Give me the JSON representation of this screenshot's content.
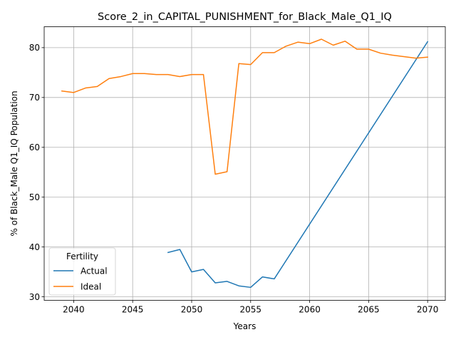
{
  "chart_data": {
    "type": "line",
    "title": "Score_2_in_CAPITAL_PUNISHMENT_for_Black_Male_Q1_IQ",
    "xlabel": "Years",
    "ylabel": "% of Black_Male Q1_IQ Population",
    "xlim": [
      2037.5,
      2071.5
    ],
    "ylim": [
      29.3,
      84.2
    ],
    "xticks": [
      2040,
      2045,
      2050,
      2055,
      2060,
      2065,
      2070
    ],
    "yticks": [
      30,
      40,
      50,
      60,
      70,
      80
    ],
    "grid": true,
    "legend": {
      "title": "Fertility",
      "position": "lower-left"
    },
    "series": [
      {
        "name": "Actual",
        "color": "#1f77b4",
        "x": [
          2048,
          2049,
          2050,
          2051,
          2052,
          2053,
          2054,
          2055,
          2056,
          2057,
          2070
        ],
        "y": [
          38.9,
          39.5,
          35.0,
          35.5,
          32.8,
          33.1,
          32.2,
          31.9,
          34.0,
          33.6,
          81.2
        ]
      },
      {
        "name": "Ideal",
        "color": "#ff7f0e",
        "x": [
          2039,
          2040,
          2041,
          2042,
          2043,
          2044,
          2045,
          2046,
          2047,
          2048,
          2049,
          2050,
          2051,
          2052,
          2053,
          2054,
          2055,
          2056,
          2057,
          2058,
          2059,
          2060,
          2061,
          2062,
          2063,
          2064,
          2065,
          2066,
          2067,
          2068,
          2069,
          2070
        ],
        "y": [
          71.3,
          71.0,
          71.9,
          72.2,
          73.8,
          74.2,
          74.8,
          74.8,
          74.6,
          74.6,
          74.2,
          74.6,
          74.6,
          54.6,
          55.1,
          76.8,
          76.6,
          79.0,
          79.0,
          80.3,
          81.1,
          80.8,
          81.7,
          80.5,
          81.3,
          79.7,
          79.7,
          78.9,
          78.5,
          78.2,
          77.9,
          78.1
        ]
      }
    ]
  }
}
